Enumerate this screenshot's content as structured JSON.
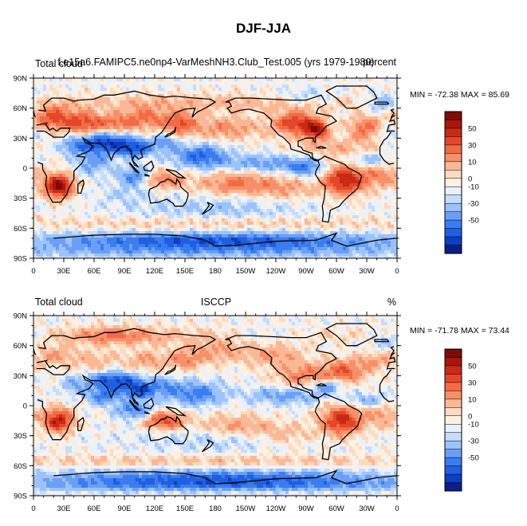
{
  "title": "DJF-JJA",
  "colors": {
    "levels": [
      "#0b1f87",
      "#0d3fbf",
      "#1f5fe0",
      "#3b7df0",
      "#6a9ff5",
      "#9bc2fa",
      "#c6dcfb",
      "#e8f1fd",
      "#fff0e0",
      "#fddac0",
      "#fbb896",
      "#f7906a",
      "#f26b44",
      "#e4462a",
      "#c92a16",
      "#a8160c",
      "#7e0c06"
    ],
    "coast": "#000000"
  },
  "panels": [
    {
      "id": "model",
      "left_label": "Total cloud",
      "center_label": "f.e15a6.FAMIPC5.ne0np4-VarMeshNH3.Club_Test.005 (yrs 1979-1980)",
      "right_label": "percent",
      "stats": "MIN = -72.38 MAX =  85.69"
    },
    {
      "id": "obs",
      "left_label": "Total cloud",
      "center_label": "ISCCP",
      "right_label": "%",
      "stats": "MIN = -71.78 MAX =  73.44"
    }
  ],
  "axes": {
    "lon_labels": [
      "0",
      "30E",
      "60E",
      "90E",
      "120E",
      "150E",
      "180",
      "150W",
      "120W",
      "90W",
      "60W",
      "30W",
      "0"
    ],
    "lat_labels": [
      "90N",
      "60N",
      "30N",
      "0",
      "30S",
      "60S",
      "90S"
    ]
  },
  "colorbar": {
    "labels": [
      "50",
      "30",
      "10",
      "0",
      "-10",
      "-30",
      "-50"
    ]
  }
}
